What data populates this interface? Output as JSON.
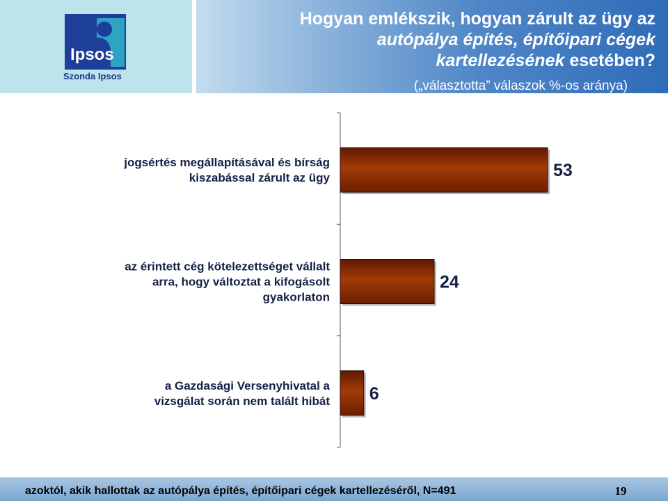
{
  "header": {
    "title_line1": "Hogyan emlékszik, hogyan zárult az ügy az",
    "title_line2": "autópálya építés, építőipari cégek",
    "title_line3_italic": "kartellezésének",
    "title_line3_rest": " esetében?",
    "subtitle": "(„választotta” válaszok %-os aránya)"
  },
  "logo": {
    "brand": "Ipsos",
    "subtitle": "Szonda Ipsos"
  },
  "colors": {
    "bar_fill": "#993300",
    "bar_fill_dark": "#6b1f00",
    "header_accent": "#2f6cb8",
    "logo_blue": "#1a3a8c"
  },
  "chart_data": {
    "type": "bar",
    "orientation": "horizontal",
    "categories": [
      [
        "jogsértés megállapításával és bírság",
        "kiszabással zárult az ügy"
      ],
      [
        "az érintett cég kötelezettséget vállalt",
        "arra, hogy változtat a kifogásolt",
        "gyakorlaton"
      ],
      [
        "a Gazdasági Versenyhivatal a",
        "vizsgálat során nem talált hibát"
      ]
    ],
    "values": [
      53,
      24,
      6
    ],
    "xlim": [
      0,
      53
    ],
    "grid": false,
    "legend": "none"
  },
  "footer": {
    "note": "azoktól, akik hallottak az autópálya építés, építőipari cégek kartellezéséről, N=491",
    "page_number": "19"
  }
}
